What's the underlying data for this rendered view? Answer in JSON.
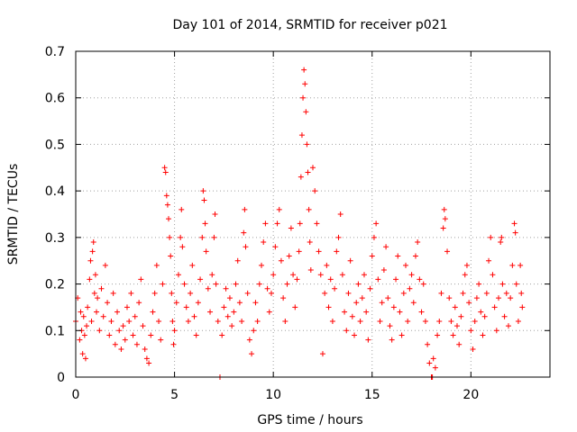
{
  "chart_data": {
    "type": "scatter",
    "title": "Day 101 of 2014, SRMTID for receiver p021",
    "xlabel": "GPS time / hours",
    "ylabel": "SRMTID / TECUs",
    "xlim": [
      0,
      24
    ],
    "ylim": [
      0,
      0.7
    ],
    "xticks": [
      0,
      5,
      10,
      15,
      20
    ],
    "yticks": [
      0,
      0.1,
      0.2,
      0.3,
      0.4,
      0.5,
      0.6,
      0.7
    ],
    "ytick_labels": [
      "0",
      "0.1",
      "0.2",
      "0.3",
      "0.4",
      "0.5",
      "0.6",
      "0.7"
    ],
    "grid": true,
    "marker": "+",
    "color": "#ff0000",
    "series": [
      {
        "name": "SRMTID",
        "points": [
          [
            0.0,
            0.12
          ],
          [
            0.1,
            0.17
          ],
          [
            0.2,
            0.08
          ],
          [
            0.25,
            0.14
          ],
          [
            0.3,
            0.1
          ],
          [
            0.35,
            0.05
          ],
          [
            0.4,
            0.13
          ],
          [
            0.45,
            0.09
          ],
          [
            0.5,
            0.04
          ],
          [
            0.55,
            0.11
          ],
          [
            0.6,
            0.15
          ],
          [
            0.7,
            0.21
          ],
          [
            0.75,
            0.25
          ],
          [
            0.8,
            0.12
          ],
          [
            0.85,
            0.27
          ],
          [
            0.9,
            0.29
          ],
          [
            0.95,
            0.18
          ],
          [
            1.0,
            0.22
          ],
          [
            1.05,
            0.14
          ],
          [
            1.1,
            0.17
          ],
          [
            1.2,
            0.1
          ],
          [
            1.3,
            0.19
          ],
          [
            1.4,
            0.13
          ],
          [
            1.5,
            0.24
          ],
          [
            1.6,
            0.16
          ],
          [
            1.7,
            0.09
          ],
          [
            1.8,
            0.12
          ],
          [
            1.9,
            0.18
          ],
          [
            2.0,
            0.07
          ],
          [
            2.1,
            0.14
          ],
          [
            2.2,
            0.1
          ],
          [
            2.3,
            0.06
          ],
          [
            2.4,
            0.11
          ],
          [
            2.5,
            0.08
          ],
          [
            2.6,
            0.15
          ],
          [
            2.7,
            0.12
          ],
          [
            2.8,
            0.18
          ],
          [
            2.9,
            0.09
          ],
          [
            3.0,
            0.13
          ],
          [
            3.1,
            0.07
          ],
          [
            3.2,
            0.16
          ],
          [
            3.3,
            0.21
          ],
          [
            3.4,
            0.11
          ],
          [
            3.5,
            0.06
          ],
          [
            3.6,
            0.04
          ],
          [
            3.7,
            0.03
          ],
          [
            3.8,
            0.09
          ],
          [
            3.9,
            0.14
          ],
          [
            4.0,
            0.18
          ],
          [
            4.1,
            0.24
          ],
          [
            4.2,
            0.12
          ],
          [
            4.3,
            0.08
          ],
          [
            4.4,
            0.2
          ],
          [
            4.5,
            0.45
          ],
          [
            4.55,
            0.44
          ],
          [
            4.6,
            0.39
          ],
          [
            4.65,
            0.37
          ],
          [
            4.7,
            0.34
          ],
          [
            4.75,
            0.3
          ],
          [
            4.8,
            0.26
          ],
          [
            4.85,
            0.18
          ],
          [
            4.9,
            0.12
          ],
          [
            4.95,
            0.07
          ],
          [
            5.0,
            0.1
          ],
          [
            5.1,
            0.16
          ],
          [
            5.2,
            0.22
          ],
          [
            5.3,
            0.3
          ],
          [
            5.35,
            0.36
          ],
          [
            5.4,
            0.28
          ],
          [
            5.5,
            0.2
          ],
          [
            5.6,
            0.15
          ],
          [
            5.7,
            0.12
          ],
          [
            5.8,
            0.18
          ],
          [
            5.9,
            0.24
          ],
          [
            6.0,
            0.13
          ],
          [
            6.1,
            0.09
          ],
          [
            6.2,
            0.16
          ],
          [
            6.3,
            0.21
          ],
          [
            6.4,
            0.3
          ],
          [
            6.45,
            0.4
          ],
          [
            6.5,
            0.38
          ],
          [
            6.55,
            0.33
          ],
          [
            6.6,
            0.27
          ],
          [
            6.7,
            0.19
          ],
          [
            6.8,
            0.14
          ],
          [
            6.9,
            0.22
          ],
          [
            7.0,
            0.3
          ],
          [
            7.05,
            0.35
          ],
          [
            7.1,
            0.2
          ],
          [
            7.2,
            0.12
          ],
          [
            7.3,
            0.0
          ],
          [
            7.4,
            0.09
          ],
          [
            7.5,
            0.15
          ],
          [
            7.6,
            0.19
          ],
          [
            7.7,
            0.13
          ],
          [
            7.8,
            0.17
          ],
          [
            7.9,
            0.11
          ],
          [
            8.0,
            0.14
          ],
          [
            8.1,
            0.2
          ],
          [
            8.2,
            0.25
          ],
          [
            8.3,
            0.16
          ],
          [
            8.4,
            0.12
          ],
          [
            8.5,
            0.31
          ],
          [
            8.55,
            0.36
          ],
          [
            8.6,
            0.28
          ],
          [
            8.7,
            0.18
          ],
          [
            8.8,
            0.08
          ],
          [
            8.9,
            0.05
          ],
          [
            9.0,
            0.1
          ],
          [
            9.1,
            0.16
          ],
          [
            9.2,
            0.12
          ],
          [
            9.3,
            0.2
          ],
          [
            9.4,
            0.24
          ],
          [
            9.5,
            0.29
          ],
          [
            9.6,
            0.33
          ],
          [
            9.7,
            0.19
          ],
          [
            9.8,
            0.14
          ],
          [
            9.9,
            0.18
          ],
          [
            10.0,
            0.22
          ],
          [
            10.1,
            0.28
          ],
          [
            10.2,
            0.33
          ],
          [
            10.3,
            0.36
          ],
          [
            10.4,
            0.25
          ],
          [
            10.5,
            0.17
          ],
          [
            10.6,
            0.12
          ],
          [
            10.7,
            0.2
          ],
          [
            10.8,
            0.26
          ],
          [
            10.9,
            0.32
          ],
          [
            11.0,
            0.22
          ],
          [
            11.1,
            0.15
          ],
          [
            11.2,
            0.21
          ],
          [
            11.3,
            0.27
          ],
          [
            11.35,
            0.33
          ],
          [
            11.4,
            0.43
          ],
          [
            11.45,
            0.52
          ],
          [
            11.5,
            0.6
          ],
          [
            11.55,
            0.66
          ],
          [
            11.6,
            0.63
          ],
          [
            11.65,
            0.57
          ],
          [
            11.7,
            0.5
          ],
          [
            11.75,
            0.44
          ],
          [
            11.8,
            0.36
          ],
          [
            11.85,
            0.29
          ],
          [
            11.9,
            0.23
          ],
          [
            12.0,
            0.45
          ],
          [
            12.1,
            0.4
          ],
          [
            12.2,
            0.33
          ],
          [
            12.3,
            0.27
          ],
          [
            12.4,
            0.22
          ],
          [
            12.5,
            0.05
          ],
          [
            12.6,
            0.18
          ],
          [
            12.7,
            0.24
          ],
          [
            12.8,
            0.15
          ],
          [
            12.9,
            0.21
          ],
          [
            13.0,
            0.12
          ],
          [
            13.1,
            0.19
          ],
          [
            13.2,
            0.27
          ],
          [
            13.3,
            0.3
          ],
          [
            13.4,
            0.35
          ],
          [
            13.5,
            0.22
          ],
          [
            13.6,
            0.14
          ],
          [
            13.7,
            0.1
          ],
          [
            13.8,
            0.18
          ],
          [
            13.9,
            0.25
          ],
          [
            14.0,
            0.13
          ],
          [
            14.1,
            0.09
          ],
          [
            14.2,
            0.16
          ],
          [
            14.3,
            0.2
          ],
          [
            14.4,
            0.12
          ],
          [
            14.5,
            0.17
          ],
          [
            14.6,
            0.22
          ],
          [
            14.7,
            0.14
          ],
          [
            14.8,
            0.08
          ],
          [
            14.9,
            0.19
          ],
          [
            15.0,
            0.26
          ],
          [
            15.1,
            0.3
          ],
          [
            15.2,
            0.33
          ],
          [
            15.3,
            0.21
          ],
          [
            15.4,
            0.12
          ],
          [
            15.5,
            0.16
          ],
          [
            15.6,
            0.23
          ],
          [
            15.7,
            0.28
          ],
          [
            15.8,
            0.17
          ],
          [
            15.9,
            0.11
          ],
          [
            16.0,
            0.08
          ],
          [
            16.1,
            0.15
          ],
          [
            16.2,
            0.21
          ],
          [
            16.3,
            0.26
          ],
          [
            16.4,
            0.14
          ],
          [
            16.5,
            0.09
          ],
          [
            16.6,
            0.18
          ],
          [
            16.7,
            0.24
          ],
          [
            16.8,
            0.12
          ],
          [
            16.9,
            0.19
          ],
          [
            17.0,
            0.22
          ],
          [
            17.1,
            0.16
          ],
          [
            17.2,
            0.26
          ],
          [
            17.3,
            0.29
          ],
          [
            17.4,
            0.21
          ],
          [
            17.5,
            0.14
          ],
          [
            17.6,
            0.2
          ],
          [
            17.7,
            0.12
          ],
          [
            17.8,
            0.07
          ],
          [
            17.9,
            0.03
          ],
          [
            18.0,
            0.0
          ],
          [
            18.05,
            0.0
          ],
          [
            18.1,
            0.04
          ],
          [
            18.2,
            0.02
          ],
          [
            18.3,
            0.09
          ],
          [
            18.4,
            0.12
          ],
          [
            18.5,
            0.18
          ],
          [
            18.6,
            0.32
          ],
          [
            18.65,
            0.36
          ],
          [
            18.7,
            0.34
          ],
          [
            18.8,
            0.27
          ],
          [
            18.9,
            0.17
          ],
          [
            19.0,
            0.12
          ],
          [
            19.1,
            0.09
          ],
          [
            19.2,
            0.15
          ],
          [
            19.3,
            0.11
          ],
          [
            19.4,
            0.07
          ],
          [
            19.5,
            0.13
          ],
          [
            19.6,
            0.18
          ],
          [
            19.7,
            0.22
          ],
          [
            19.8,
            0.24
          ],
          [
            19.9,
            0.16
          ],
          [
            20.0,
            0.1
          ],
          [
            20.1,
            0.06
          ],
          [
            20.2,
            0.12
          ],
          [
            20.3,
            0.17
          ],
          [
            20.4,
            0.2
          ],
          [
            20.5,
            0.14
          ],
          [
            20.6,
            0.09
          ],
          [
            20.7,
            0.13
          ],
          [
            20.8,
            0.18
          ],
          [
            20.9,
            0.25
          ],
          [
            21.0,
            0.3
          ],
          [
            21.1,
            0.22
          ],
          [
            21.2,
            0.15
          ],
          [
            21.3,
            0.1
          ],
          [
            21.4,
            0.17
          ],
          [
            21.5,
            0.29
          ],
          [
            21.55,
            0.3
          ],
          [
            21.6,
            0.2
          ],
          [
            21.7,
            0.13
          ],
          [
            21.8,
            0.18
          ],
          [
            21.9,
            0.11
          ],
          [
            22.0,
            0.17
          ],
          [
            22.1,
            0.24
          ],
          [
            22.2,
            0.33
          ],
          [
            22.25,
            0.31
          ],
          [
            22.3,
            0.2
          ],
          [
            22.4,
            0.12
          ],
          [
            22.5,
            0.24
          ],
          [
            22.55,
            0.18
          ],
          [
            22.6,
            0.15
          ]
        ]
      }
    ]
  }
}
